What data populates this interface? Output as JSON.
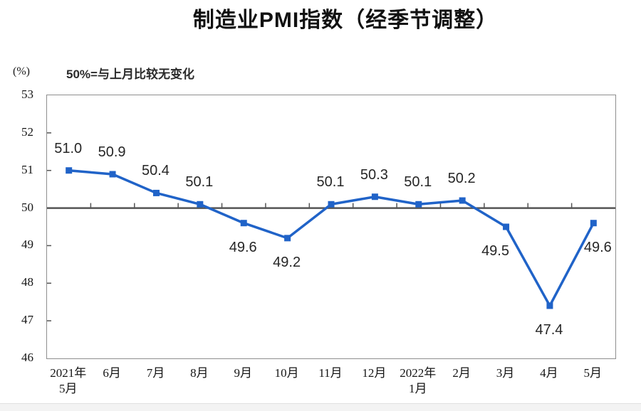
{
  "chart_data": {
    "type": "line",
    "title": "制造业PMI指数（经季节调整）",
    "unit_label": "(%)",
    "annotation": "50%=与上月比较无变化",
    "categories": [
      "2021年\n5月",
      "6月",
      "7月",
      "8月",
      "9月",
      "10月",
      "11月",
      "12月",
      "2022年\n1月",
      "2月",
      "3月",
      "4月",
      "5月"
    ],
    "values": [
      51.0,
      50.9,
      50.4,
      50.1,
      49.6,
      49.2,
      50.1,
      50.3,
      50.1,
      50.2,
      49.5,
      47.4,
      49.6
    ],
    "labels": [
      "51.0",
      "50.9",
      "50.4",
      "50.1",
      "49.6",
      "49.2",
      "50.1",
      "50.3",
      "50.1",
      "50.2",
      "49.5",
      "47.4",
      "49.6"
    ],
    "label_positions": [
      "above",
      "above",
      "above",
      "above",
      "below",
      "below",
      "above",
      "above",
      "above",
      "above",
      "below",
      "below",
      "below"
    ],
    "label_dx": [
      0,
      0,
      0,
      0,
      0,
      0,
      0,
      0,
      0,
      0,
      -14,
      0,
      7
    ],
    "ylim": [
      46,
      53
    ],
    "yticks": [
      53,
      52,
      51,
      50,
      49,
      48,
      47,
      46
    ],
    "reference_value": 50,
    "grid": false,
    "legend": "none",
    "colors": {
      "line": "#2063C8",
      "marker": "#2063C8",
      "reference_line": "#555555",
      "frame": "#8e8e8e",
      "text": "#151515"
    }
  }
}
